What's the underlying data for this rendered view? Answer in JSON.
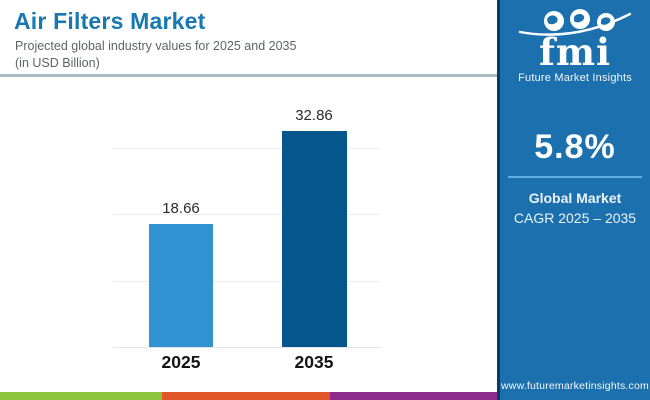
{
  "header": {
    "title": "Air Filters Market",
    "subtitle_line1": "Projected global industry values for 2025 and 2035",
    "subtitle_line2": "(in USD Billion)"
  },
  "chart_data": {
    "type": "bar",
    "categories": [
      "2025",
      "2035"
    ],
    "values": [
      18.66,
      32.86
    ],
    "value_labels": [
      "18.66",
      "32.86"
    ],
    "title": "Air Filters Market",
    "xlabel": "",
    "ylabel": "USD Billion",
    "ylim": [
      0,
      35
    ],
    "gridline_values": [
      0,
      10,
      20,
      30
    ],
    "grid": true,
    "legend": "none",
    "bar_colors": [
      "#3193d1",
      "#05568c"
    ]
  },
  "sidebar": {
    "logo": {
      "text": "fmi",
      "caption": "Future Market Insights"
    },
    "cagr": {
      "value": "5.8%",
      "label_line1": "Global Market",
      "label_line2": "CAGR 2025 – 2035"
    },
    "website": "www.futuremarketinsights.com"
  },
  "colors": {
    "title_text": "#1878b0",
    "panel_background": "#1c70ae",
    "panel_border": "#0d3a63",
    "cagr_underline": "#5fb0e0",
    "header_divider": "#a9bcc6"
  },
  "footer_strip_colors": [
    "#8fc43d",
    "#e2572a",
    "#8f2b8d"
  ]
}
